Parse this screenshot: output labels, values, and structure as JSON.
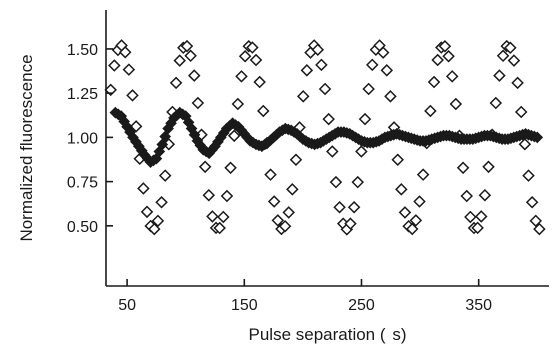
{
  "chart_data": {
    "type": "scatter",
    "title": "",
    "xlabel": "Pulse separation (  s)",
    "ylabel": "Normalized fluorescence",
    "xlim": [
      32,
      410
    ],
    "ylim": [
      0.16,
      1.72
    ],
    "x_ticks": [
      {
        "value": 50,
        "label": "50"
      },
      {
        "value": 150,
        "label": "150"
      },
      {
        "value": 250,
        "label": "250"
      },
      {
        "value": 350,
        "label": "350"
      }
    ],
    "y_ticks": [
      {
        "value": 0.5,
        "label": "0.50"
      },
      {
        "value": 0.75,
        "label": "0.75"
      },
      {
        "value": 1.0,
        "label": "1.00"
      },
      {
        "value": 1.25,
        "label": "1.25"
      },
      {
        "value": 1.5,
        "label": "1.50"
      }
    ],
    "grid": false,
    "series": [
      {
        "marker": "hollow-diamond",
        "period": 55,
        "phase": 45,
        "center": 1.0,
        "amplitude": 0.52,
        "x_start": 36,
        "x_end": 404,
        "step": 3.1
      },
      {
        "marker": "filled-diamond",
        "x": [
          40,
          45,
          50,
          55,
          60,
          65,
          70,
          75,
          80,
          85,
          90,
          95,
          100,
          105,
          110,
          115,
          120,
          125,
          130,
          135,
          140,
          145,
          150,
          155,
          160,
          165,
          170,
          175,
          180,
          185,
          190,
          195,
          200,
          205,
          210,
          215,
          220,
          225,
          230,
          235,
          240,
          245,
          250,
          255,
          260,
          265,
          270,
          275,
          280,
          285,
          290,
          295,
          300,
          305,
          310,
          315,
          320,
          325,
          330,
          335,
          340,
          345,
          350,
          355,
          360,
          365,
          370,
          375,
          380,
          385,
          390,
          395,
          400
        ],
        "y": [
          1.14,
          1.12,
          1.06,
          1.0,
          0.95,
          0.9,
          0.86,
          0.88,
          0.96,
          1.05,
          1.11,
          1.14,
          1.12,
          1.05,
          0.98,
          0.93,
          0.91,
          0.95,
          1.0,
          1.05,
          1.08,
          1.06,
          1.02,
          0.98,
          0.96,
          0.95,
          0.97,
          1.0,
          1.03,
          1.05,
          1.04,
          1.02,
          0.99,
          0.97,
          0.96,
          0.97,
          0.99,
          1.01,
          1.03,
          1.03,
          1.02,
          1.0,
          0.98,
          0.97,
          0.97,
          0.98,
          1.0,
          1.01,
          1.02,
          1.01,
          1.0,
          0.99,
          0.98,
          0.98,
          0.99,
          1.0,
          1.01,
          1.01,
          1.0,
          0.99,
          0.99,
          0.99,
          1.0,
          1.01,
          1.01,
          1.0,
          0.99,
          0.99,
          1.0,
          1.01,
          1.02,
          1.01,
          1.0
        ]
      }
    ]
  }
}
